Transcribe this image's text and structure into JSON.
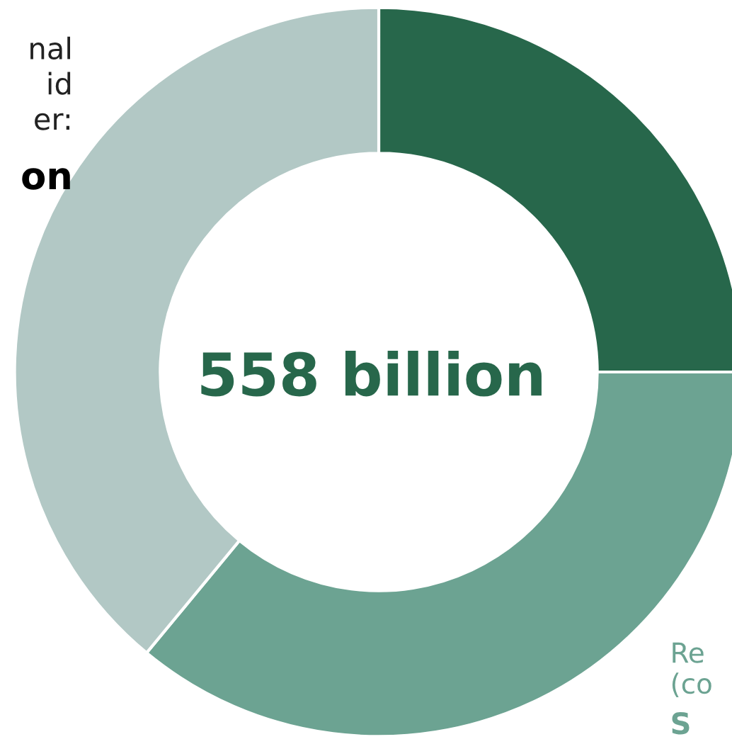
{
  "chart_data": {
    "type": "donut",
    "categories": [
      null,
      null,
      null
    ],
    "values": [
      25,
      36,
      39
    ],
    "colors": [
      "#27674b",
      "#6ca392",
      "#b2c8c5"
    ],
    "annotations": [
      "558 billion",
      "nal\nid\ner:",
      "on",
      "Re\n(co",
      "S"
    ]
  }
}
